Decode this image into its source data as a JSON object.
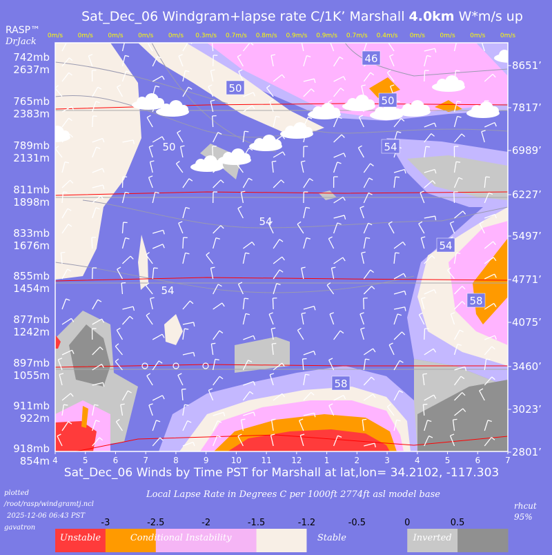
{
  "header": {
    "title_prefix": "Sat_Dec_06 Windgram+lapse rate C/1K’  Marshall ",
    "title_bold": "4.0km",
    "title_suffix": "  W*m/s up",
    "brand": "RASP™",
    "author": "DrJack"
  },
  "footer": {
    "xaxis_title": "Sat_Dec_06 Winds by Time PST for Marshall at lat,lon= 34.2102, -117.303",
    "plotted_lines": [
      "plotted",
      "/root/rasp/windgramtj.ncl",
      "2025-12-06 06:43 PST",
      "gavatron"
    ],
    "legend_title": "Local Lapse Rate in Degrees C per 1000ft  2774ft asl model base",
    "rh_lines": [
      "rhcut",
      "95%"
    ]
  },
  "legend": {
    "ticks": [
      "-3",
      "-2.5",
      "-2",
      "-1.5",
      "-1.2",
      "-0.5",
      "0",
      "0.5"
    ],
    "labels": [
      "Unstable",
      "Conditional Instability",
      "Stable",
      "Inverted"
    ],
    "colors": [
      "#ff3b3b",
      "#ff9a00",
      "#f5b5f5",
      "#f5b5f5",
      "#f8efe6",
      "#7b7be6",
      "#7b7be6",
      "#c8c8c8",
      "#909090"
    ]
  },
  "colors": {
    "background": "#7b7be6",
    "unstable": "#ff3b3b",
    "conditional": "#ff9a00",
    "pink": "#ffb4ff",
    "lavender": "#c4b8ff",
    "cream": "#f8efe6",
    "light_grey": "#c8c8c8",
    "dark_grey": "#909090",
    "wind_speed_text": "#ffff00"
  },
  "chart_data": {
    "type": "heatmap",
    "x_ticks": [
      "4",
      "5",
      "6",
      "7",
      "8",
      "9",
      "10",
      "11",
      "12",
      "1",
      "2",
      "3",
      "4",
      "5",
      "6",
      "7"
    ],
    "wstar_top": [
      "0m/s",
      "0m/s",
      "0m/s",
      "0m/s",
      "0m/s",
      "0.3m/s",
      "0.7m/s",
      "0.8m/s",
      "0.9m/s",
      "0.9m/s",
      "0.7m/s",
      "0.4m/s",
      "0m/s",
      "0m/s",
      "0m/s",
      "0m/s"
    ],
    "left_axis": [
      {
        "mb": "742mb",
        "m": "2637m"
      },
      {
        "mb": "765mb",
        "m": "2383m"
      },
      {
        "mb": "789mb",
        "m": "2131m"
      },
      {
        "mb": "811mb",
        "m": "1898m"
      },
      {
        "mb": "833mb",
        "m": "1676m"
      },
      {
        "mb": "855mb",
        "m": "1454m"
      },
      {
        "mb": "877mb",
        "m": "1242m"
      },
      {
        "mb": "897mb",
        "m": "1055m"
      },
      {
        "mb": "911mb",
        "m": "922m"
      },
      {
        "mb": "918mb",
        "m": "854m"
      }
    ],
    "right_axis": [
      "8651’",
      "7817’",
      "6989’",
      "6227’",
      "5497’",
      "4771’",
      "4075’",
      "3460’",
      "3023’",
      "2801’"
    ],
    "contour_labels": [
      "46",
      "50",
      "50",
      "54",
      "50",
      "54",
      "54",
      "58",
      "54",
      "58"
    ],
    "legend_scale": [
      -3,
      -2.5,
      -2,
      -1.5,
      -1.2,
      -0.5,
      0,
      0.5
    ]
  }
}
